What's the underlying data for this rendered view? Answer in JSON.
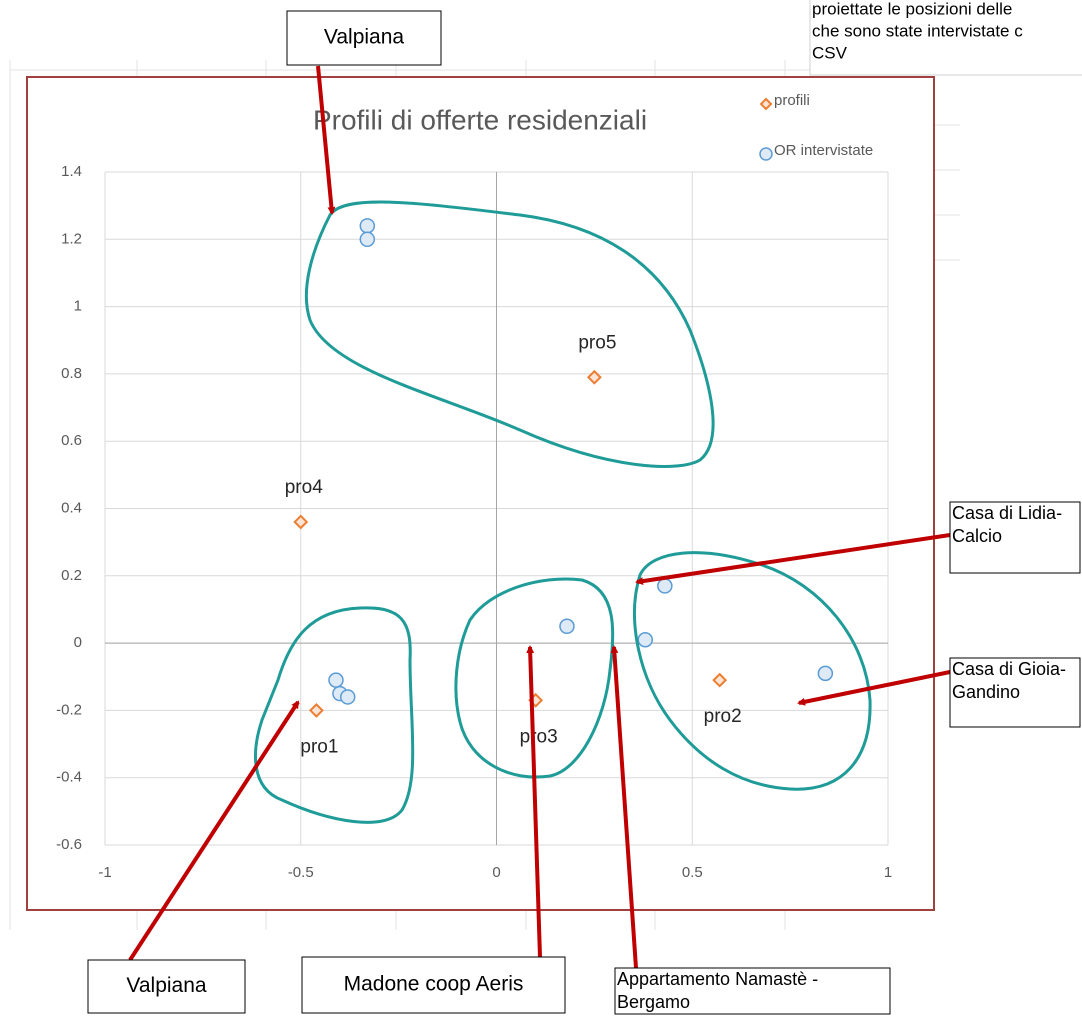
{
  "chart_data": {
    "type": "scatter",
    "title": "Profili di offerte residenziali",
    "xlim": [
      -1,
      1
    ],
    "xticks": [
      -1,
      -0.5,
      0,
      0.5,
      1
    ],
    "ylim": [
      -0.6,
      1.4
    ],
    "yticks": [
      -0.6,
      -0.4,
      -0.2,
      0,
      0.2,
      0.4,
      0.6,
      0.8,
      1,
      1.2,
      1.4
    ],
    "grid": true,
    "legend": "top-right",
    "series": [
      {
        "name": "profili",
        "color": "#ed7d31",
        "marker": "diamond",
        "x": [
          -0.46,
          0.57,
          0.1,
          -0.5,
          0.25
        ],
        "values": [
          -0.2,
          -0.11,
          -0.17,
          0.36,
          0.79
        ],
        "point_labels": [
          "pro1",
          "pro2",
          "pro3",
          "pro4",
          "pro5"
        ]
      },
      {
        "name": "OR intervistate",
        "color": "#5b9bd5",
        "marker": "circle",
        "x": [
          -0.33,
          -0.33,
          -0.41,
          -0.4,
          -0.38,
          0.18,
          0.43,
          0.38,
          0.84
        ],
        "values": [
          1.24,
          1.2,
          -0.11,
          -0.15,
          -0.16,
          0.05,
          0.17,
          0.01,
          -0.09
        ]
      }
    ]
  },
  "annotations": [
    {
      "lines": [
        "Valpiana"
      ]
    },
    {
      "lines": [
        "Valpiana"
      ]
    },
    {
      "lines": [
        "Madone coop Aeris"
      ]
    },
    {
      "lines": [
        "Appartamento Namastè -",
        "Bergamo"
      ]
    },
    {
      "lines": [
        "Casa di Lidia-",
        "Calcio"
      ]
    },
    {
      "lines": [
        "Casa di Gioia-",
        "Gandino"
      ]
    },
    {
      "lines": [
        "proiettate le posizioni delle",
        "che sono state intervistate c",
        "CSV"
      ]
    }
  ]
}
